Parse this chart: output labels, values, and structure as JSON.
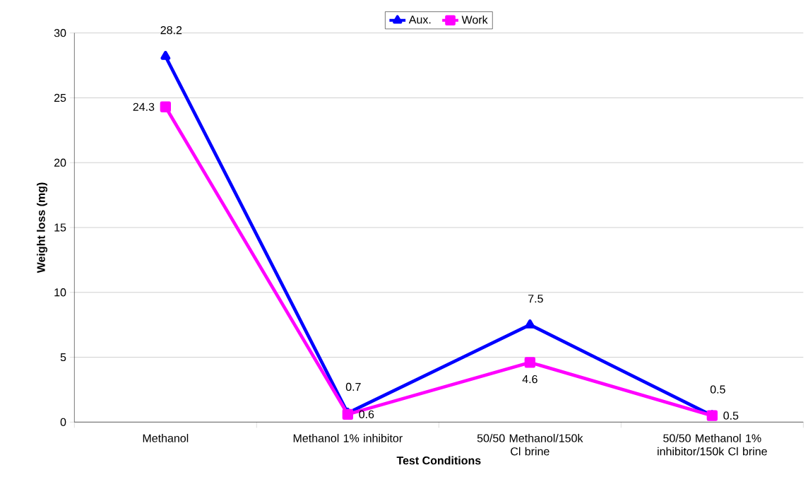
{
  "chart_data": {
    "type": "line",
    "categories": [
      "Methanol",
      "Methanol 1% inhibitor",
      "50/50 Methanol/150k Cl brine",
      "50/50 Methanol 1% inhibitor/150k Cl brine"
    ],
    "series": [
      {
        "name": "Aux.",
        "color": "#0000ff",
        "marker": "triangle",
        "values": [
          28.2,
          0.7,
          7.5,
          0.5
        ]
      },
      {
        "name": "Work",
        "color": "#ff00ff",
        "marker": "square",
        "values": [
          24.3,
          0.6,
          4.6,
          0.5
        ]
      }
    ],
    "xlabel": "Test Conditions",
    "ylabel": "Weight loss (mg)",
    "ylim": [
      0,
      30
    ],
    "yticks": [
      0,
      5,
      10,
      15,
      20,
      25,
      30
    ],
    "grid": "y",
    "legend": "top",
    "data_labels": true,
    "line_style": "solid"
  }
}
